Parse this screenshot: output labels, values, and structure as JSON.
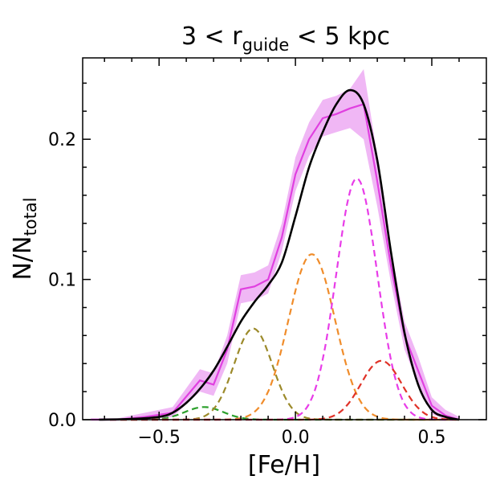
{
  "chart_data": {
    "type": "line",
    "title": {
      "prefix": "3 < r",
      "subscript": "guide",
      "suffix": " < 5 kpc"
    },
    "xlabel": "[Fe/H]",
    "ylabel": {
      "main": "N/N",
      "subscript": "total"
    },
    "xlim": [
      -0.78,
      0.7
    ],
    "ylim": [
      0.0,
      0.258
    ],
    "x_ticks": [
      -0.5,
      0.0,
      0.5
    ],
    "x_tick_labels": [
      "−0.5",
      "0.0",
      "0.5"
    ],
    "y_ticks": [
      0.0,
      0.1,
      0.2
    ],
    "y_tick_labels": [
      "0.0",
      "0.1",
      "0.2"
    ],
    "grid": false,
    "colors": {
      "histogram": "#e040e0",
      "band": "#e890f0",
      "total_model": "#000000",
      "comp_green": "#2ca02c",
      "comp_olive": "#9c8a2a",
      "comp_orange": "#f08c2a",
      "comp_magenta": "#e83ce8",
      "comp_red": "#e03228"
    },
    "histogram": {
      "x": [
        -0.75,
        -0.65,
        -0.55,
        -0.45,
        -0.35,
        -0.3,
        -0.25,
        -0.2,
        -0.15,
        -0.1,
        -0.05,
        0.0,
        0.05,
        0.1,
        0.15,
        0.2,
        0.25,
        0.3,
        0.35,
        0.4,
        0.45,
        0.5,
        0.55,
        0.6
      ],
      "y": [
        0.0,
        0.0,
        0.002,
        0.005,
        0.028,
        0.025,
        0.05,
        0.093,
        0.095,
        0.1,
        0.13,
        0.175,
        0.2,
        0.215,
        0.218,
        0.222,
        0.225,
        0.17,
        0.11,
        0.06,
        0.035,
        0.01,
        0.003,
        0.0
      ],
      "band_low": [
        0.0,
        0.0,
        0.0,
        0.002,
        0.02,
        0.017,
        0.04,
        0.083,
        0.085,
        0.09,
        0.12,
        0.163,
        0.188,
        0.202,
        0.205,
        0.208,
        0.2,
        0.152,
        0.098,
        0.05,
        0.025,
        0.004,
        0.0,
        0.0
      ],
      "band_high": [
        0.001,
        0.001,
        0.005,
        0.009,
        0.036,
        0.033,
        0.06,
        0.103,
        0.105,
        0.11,
        0.14,
        0.187,
        0.212,
        0.228,
        0.231,
        0.236,
        0.25,
        0.188,
        0.122,
        0.07,
        0.045,
        0.016,
        0.007,
        0.002
      ]
    },
    "total_model": {
      "x": [
        -0.72,
        -0.6,
        -0.5,
        -0.45,
        -0.4,
        -0.35,
        -0.3,
        -0.25,
        -0.2,
        -0.15,
        -0.1,
        -0.05,
        0.0,
        0.05,
        0.1,
        0.15,
        0.2,
        0.25,
        0.3,
        0.35,
        0.4,
        0.45,
        0.5,
        0.55,
        0.6
      ],
      "y": [
        0.0,
        0.0005,
        0.002,
        0.005,
        0.012,
        0.022,
        0.035,
        0.052,
        0.07,
        0.084,
        0.096,
        0.112,
        0.145,
        0.18,
        0.205,
        0.225,
        0.235,
        0.225,
        0.185,
        0.12,
        0.062,
        0.025,
        0.007,
        0.002,
        0.0
      ]
    },
    "components": [
      {
        "key": "green",
        "mu": -0.335,
        "sigma": 0.07,
        "amp": 0.009
      },
      {
        "key": "olive",
        "mu": -0.155,
        "sigma": 0.07,
        "amp": 0.065
      },
      {
        "key": "orange",
        "mu": 0.06,
        "sigma": 0.085,
        "amp": 0.118
      },
      {
        "key": "magenta",
        "mu": 0.225,
        "sigma": 0.075,
        "amp": 0.172
      },
      {
        "key": "red",
        "mu": 0.315,
        "sigma": 0.075,
        "amp": 0.042
      }
    ]
  }
}
